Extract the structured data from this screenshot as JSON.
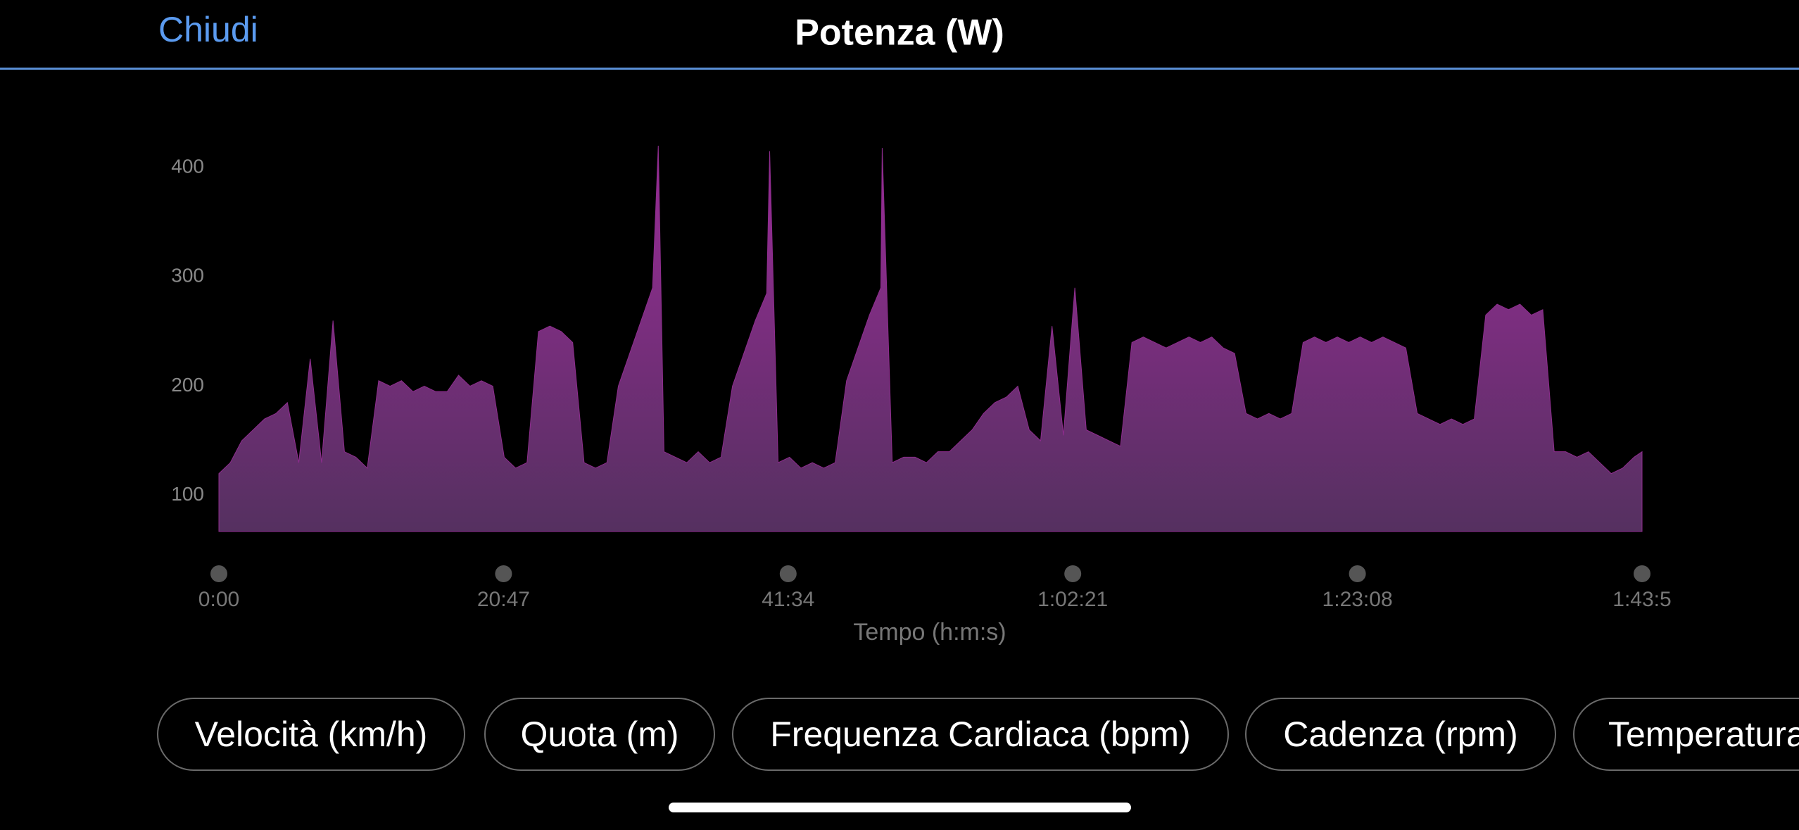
{
  "header": {
    "close": "Chiudi",
    "title": "Potenza (W)"
  },
  "chart_data": {
    "type": "area",
    "color": "#8e2d8e",
    "grid": false,
    "xlabel": "Tempo (h:m:s)",
    "xlim": [
      0,
      6235
    ],
    "ylim": [
      67,
      420
    ],
    "xticks": [
      {
        "value": 0,
        "label": "0:00"
      },
      {
        "value": 1247,
        "label": "20:47"
      },
      {
        "value": 2494,
        "label": "41:34"
      },
      {
        "value": 3741,
        "label": "1:02:21"
      },
      {
        "value": 4988,
        "label": "1:23:08"
      },
      {
        "value": 6235,
        "label": "1:43:5"
      }
    ],
    "yticks": [
      100,
      200,
      300,
      400
    ],
    "x": [
      0,
      50,
      100,
      150,
      200,
      250,
      300,
      350,
      400,
      450,
      500,
      550,
      600,
      650,
      700,
      750,
      800,
      850,
      900,
      950,
      1000,
      1050,
      1100,
      1150,
      1200,
      1250,
      1300,
      1350,
      1400,
      1450,
      1500,
      1550,
      1600,
      1650,
      1700,
      1750,
      1800,
      1850,
      1900,
      1925,
      1950,
      2000,
      2050,
      2100,
      2150,
      2200,
      2250,
      2300,
      2350,
      2400,
      2413,
      2450,
      2500,
      2550,
      2600,
      2650,
      2700,
      2750,
      2800,
      2850,
      2900,
      2906,
      2950,
      3000,
      3050,
      3100,
      3150,
      3200,
      3250,
      3300,
      3350,
      3400,
      3450,
      3500,
      3550,
      3600,
      3650,
      3700,
      3750,
      3800,
      3850,
      3900,
      3950,
      4000,
      4050,
      4100,
      4150,
      4200,
      4250,
      4300,
      4350,
      4400,
      4450,
      4500,
      4550,
      4600,
      4650,
      4700,
      4750,
      4800,
      4850,
      4900,
      4950,
      5000,
      5050,
      5100,
      5150,
      5200,
      5250,
      5300,
      5350,
      5400,
      5450,
      5500,
      5550,
      5600,
      5650,
      5700,
      5750,
      5800,
      5850,
      5900,
      5950,
      6000,
      6050,
      6100,
      6150,
      6200,
      6235
    ],
    "values": [
      120,
      130,
      150,
      160,
      170,
      175,
      185,
      130,
      225,
      130,
      260,
      140,
      135,
      125,
      205,
      200,
      205,
      195,
      200,
      195,
      195,
      210,
      200,
      205,
      200,
      135,
      125,
      130,
      250,
      255,
      250,
      240,
      130,
      125,
      130,
      200,
      230,
      260,
      290,
      420,
      140,
      135,
      130,
      140,
      130,
      135,
      200,
      230,
      260,
      285,
      415,
      130,
      135,
      125,
      130,
      125,
      130,
      205,
      235,
      265,
      290,
      418,
      130,
      135,
      135,
      130,
      140,
      140,
      150,
      160,
      175,
      185,
      190,
      200,
      160,
      150,
      255,
      155,
      290,
      160,
      155,
      150,
      145,
      240,
      245,
      240,
      235,
      240,
      245,
      240,
      245,
      235,
      230,
      175,
      170,
      175,
      170,
      175,
      240,
      245,
      240,
      245,
      240,
      245,
      240,
      245,
      240,
      235,
      175,
      170,
      165,
      170,
      165,
      170,
      265,
      275,
      270,
      275,
      265,
      270,
      140,
      140,
      135,
      140,
      130,
      120,
      125,
      135,
      140
    ]
  },
  "buttons": [
    "Velocità (km/h)",
    "Quota (m)",
    "Frequenza Cardiaca (bpm)",
    "Cadenza (rpm)",
    "Temperatura"
  ]
}
